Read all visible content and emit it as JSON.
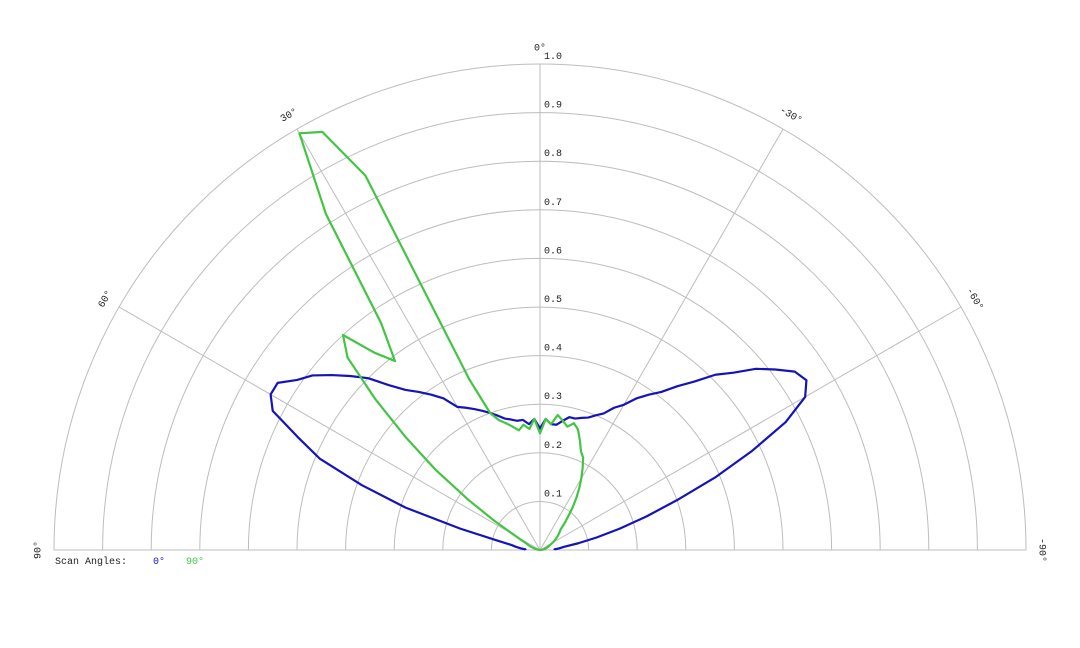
{
  "chart_data": {
    "type": "polar",
    "x": [
      -90,
      -87.5,
      -85,
      -82.5,
      -80,
      -77.5,
      -75,
      -72.5,
      -70,
      -67.5,
      -65,
      -62.5,
      -60,
      -57.5,
      -55,
      -52.5,
      -50,
      -47.5,
      -45,
      -42.5,
      -40,
      -37.5,
      -35,
      -32.5,
      -30,
      -27.5,
      -25,
      -22.5,
      -20,
      -17.5,
      -15,
      -12.5,
      -10,
      -7.5,
      -5,
      -2.5,
      0,
      2.5,
      5,
      7.5,
      10,
      12.5,
      15,
      17.5,
      20,
      22.5,
      25,
      27.5,
      30,
      32.5,
      35,
      37.5,
      40,
      42.5,
      45,
      47.5,
      50,
      52.5,
      55,
      57.5,
      60,
      62.5,
      65,
      67.5,
      70,
      72.5,
      75,
      77.5,
      80,
      82.5,
      85,
      87.5,
      90
    ],
    "series": [
      {
        "name": "0°",
        "color": "#1414b8",
        "values": [
          0.03,
          0.03,
          0.04,
          0.05,
          0.08,
          0.12,
          0.17,
          0.23,
          0.3,
          0.39,
          0.48,
          0.57,
          0.63,
          0.65,
          0.64,
          0.61,
          0.58,
          0.54,
          0.51,
          0.47,
          0.44,
          0.41,
          0.39,
          0.37,
          0.345,
          0.33,
          0.31,
          0.3,
          0.29,
          0.285,
          0.28,
          0.28,
          0.27,
          0.26,
          0.26,
          0.27,
          0.25,
          0.27,
          0.26,
          0.27,
          0.27,
          0.275,
          0.28,
          0.29,
          0.3,
          0.31,
          0.32,
          0.33,
          0.34,
          0.37,
          0.39,
          0.41,
          0.43,
          0.46,
          0.5,
          0.53,
          0.56,
          0.59,
          0.61,
          0.64,
          0.64,
          0.62,
          0.55,
          0.49,
          0.39,
          0.29,
          0.17,
          0.09,
          0.06,
          0.05,
          0.04,
          0.03,
          0.03
        ]
      },
      {
        "name": "90°",
        "color": "#44c444",
        "values": [
          0,
          0,
          0.005,
          0.005,
          0.01,
          0.01,
          0.01,
          0.015,
          0.015,
          0.02,
          0.02,
          0.025,
          0.03,
          0.035,
          0.04,
          0.045,
          0.05,
          0.055,
          0.06,
          0.075,
          0.09,
          0.11,
          0.13,
          0.15,
          0.17,
          0.19,
          0.21,
          0.22,
          0.24,
          0.26,
          0.27,
          0.26,
          0.27,
          0.28,
          0.26,
          0.27,
          0.24,
          0.27,
          0.25,
          0.26,
          0.25,
          0.26,
          0.27,
          0.28,
          0.3,
          0.38,
          0.85,
          0.97,
          0.99,
          0.82,
          0.57,
          0.49,
          0.53,
          0.6,
          0.56,
          0.46,
          0.36,
          0.27,
          0.18,
          0.11,
          0.06,
          0.04,
          0.03,
          0.025,
          0.02,
          0.015,
          0.01,
          0.01,
          0.005,
          0.005,
          0,
          0,
          0
        ]
      }
    ],
    "xlim": [
      -90,
      90
    ],
    "xticks": [
      {
        "value": 90,
        "label": "90°"
      },
      {
        "value": 60,
        "label": "60°"
      },
      {
        "value": 30,
        "label": "30°"
      },
      {
        "value": 0,
        "label": "0°"
      },
      {
        "value": -30,
        "label": "-30°"
      },
      {
        "value": -60,
        "label": "-60°"
      },
      {
        "value": -90,
        "label": "-90°"
      }
    ],
    "rlim": [
      0,
      1
    ],
    "rticks": [
      0.1,
      0.2,
      0.3,
      0.4,
      0.5,
      0.6,
      0.7,
      0.8,
      0.9,
      {
        "value": 1,
        "label": "1.0"
      }
    ],
    "legend_title": "Scan Angles:",
    "grid": true
  }
}
